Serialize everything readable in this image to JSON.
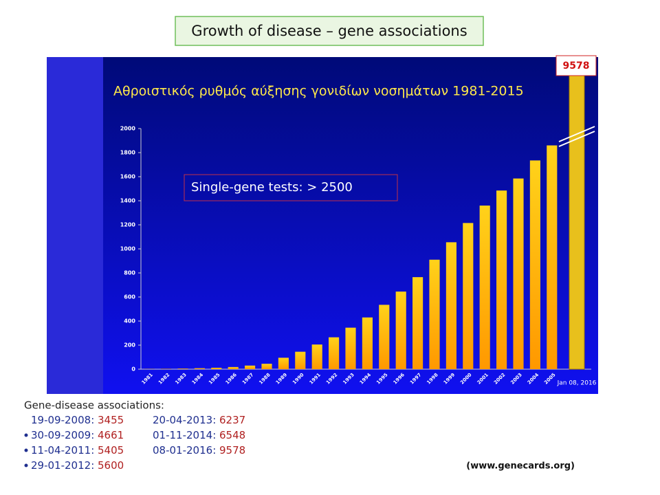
{
  "header": {
    "title": "Growth of disease – gene associations"
  },
  "chart_data": {
    "type": "bar",
    "title": "Αθροιστικός ρυθμός αύξησης γονιδίων νοσημάτων 1981-2015",
    "annotation": "Single-gene tests: > 2500",
    "categories": [
      "1981",
      "1982",
      "1983",
      "1984",
      "1985",
      "1986",
      "1987",
      "1988",
      "1989",
      "1990",
      "1991",
      "1992",
      "1993",
      "1994",
      "1995",
      "1996",
      "1997",
      "1998",
      "1999",
      "2000",
      "2001",
      "2002",
      "2003",
      "2004",
      "2005",
      "Jan 08, 2016"
    ],
    "values": [
      2,
      3,
      5,
      8,
      12,
      18,
      30,
      45,
      95,
      145,
      205,
      265,
      345,
      430,
      535,
      645,
      765,
      910,
      1055,
      1215,
      1360,
      1485,
      1585,
      1735,
      1860,
      9578
    ],
    "value_labels": [
      null,
      null,
      null,
      null,
      null,
      null,
      null,
      null,
      null,
      null,
      null,
      null,
      null,
      null,
      null,
      null,
      null,
      null,
      null,
      null,
      null,
      null,
      null,
      null,
      null,
      "9578"
    ],
    "ylim": [
      0,
      2000
    ],
    "yticks": [
      0,
      200,
      400,
      600,
      800,
      1000,
      1200,
      1400,
      1600,
      1800,
      2000
    ],
    "color": "#ffb000",
    "axis_break": true
  },
  "associations": {
    "title": "Gene-disease associations:",
    "items": [
      {
        "date": "19-09-2008",
        "value": "3455",
        "bullet": false
      },
      {
        "date": "30-09-2009",
        "value": "4661",
        "bullet": true
      },
      {
        "date": "11-04-2011",
        "value": "5405",
        "bullet": true
      },
      {
        "date": "29-01-2012",
        "value": "5600",
        "bullet": true
      },
      {
        "date": "20-04-2013",
        "value": "6237",
        "bullet": false
      },
      {
        "date": "01-11-2014",
        "value": "6548",
        "bullet": false
      },
      {
        "date": "08-01-2016",
        "value": "9578",
        "bullet": false
      }
    ]
  },
  "source": "(www.genecards.org)"
}
